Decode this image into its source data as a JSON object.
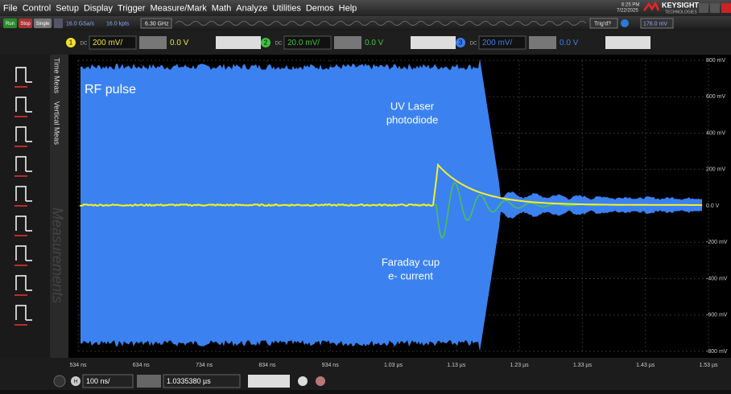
{
  "menu": {
    "items": [
      "File",
      "Control",
      "Setup",
      "Display",
      "Trigger",
      "Measure/Mark",
      "Math",
      "Analyze",
      "Utilities",
      "Demos",
      "Help"
    ],
    "time": "6:25 PM",
    "date": "7/22/2025",
    "brand": "KEYSIGHT",
    "brand_sub": "TECHNOLOGIES"
  },
  "toolbar": {
    "run": "Run",
    "stop": "Stop",
    "single": "Single",
    "sample_rate": "16.0 GSa/s",
    "memory": "16.0 kpts",
    "bandwidth": "6.30 GHz",
    "trigger_state": "Trig'd?",
    "trigger_level": "176.0 mV"
  },
  "channels": [
    {
      "number": "1",
      "coupling": "DC",
      "scale": "200 mV/",
      "offset": "0.0 V"
    },
    {
      "number": "2",
      "coupling": "DC",
      "scale": "20.0 mV/",
      "offset": "0.0 V"
    },
    {
      "number": "3",
      "coupling": "DC",
      "scale": "200 mV/",
      "offset": "0.0 V"
    }
  ],
  "side_tabs": [
    "Time Meas",
    "Vertical Meas"
  ],
  "measurements_label": "Measurements",
  "plot": {
    "annotations": [
      "RF pulse",
      "UV Laser",
      "photodiode",
      "Faraday cup",
      "e- current"
    ],
    "x_labels": [
      "534 ns",
      "634 ns",
      "734 ns",
      "834 ns",
      "934 ns",
      "1.03 µs",
      "1.13 µs",
      "1.23 µs",
      "1.33 µs",
      "1.43 µs",
      "1.53 µs"
    ],
    "y_labels": [
      "800 mV",
      "600 mV",
      "400 mV",
      "200 mV",
      "0.0 V",
      "-200 mV",
      "-400 mV",
      "-600 mV",
      "-800 mV"
    ]
  },
  "timebase": {
    "label": "H",
    "scale": "100 ns/",
    "position": "1.0335380 µs"
  }
}
